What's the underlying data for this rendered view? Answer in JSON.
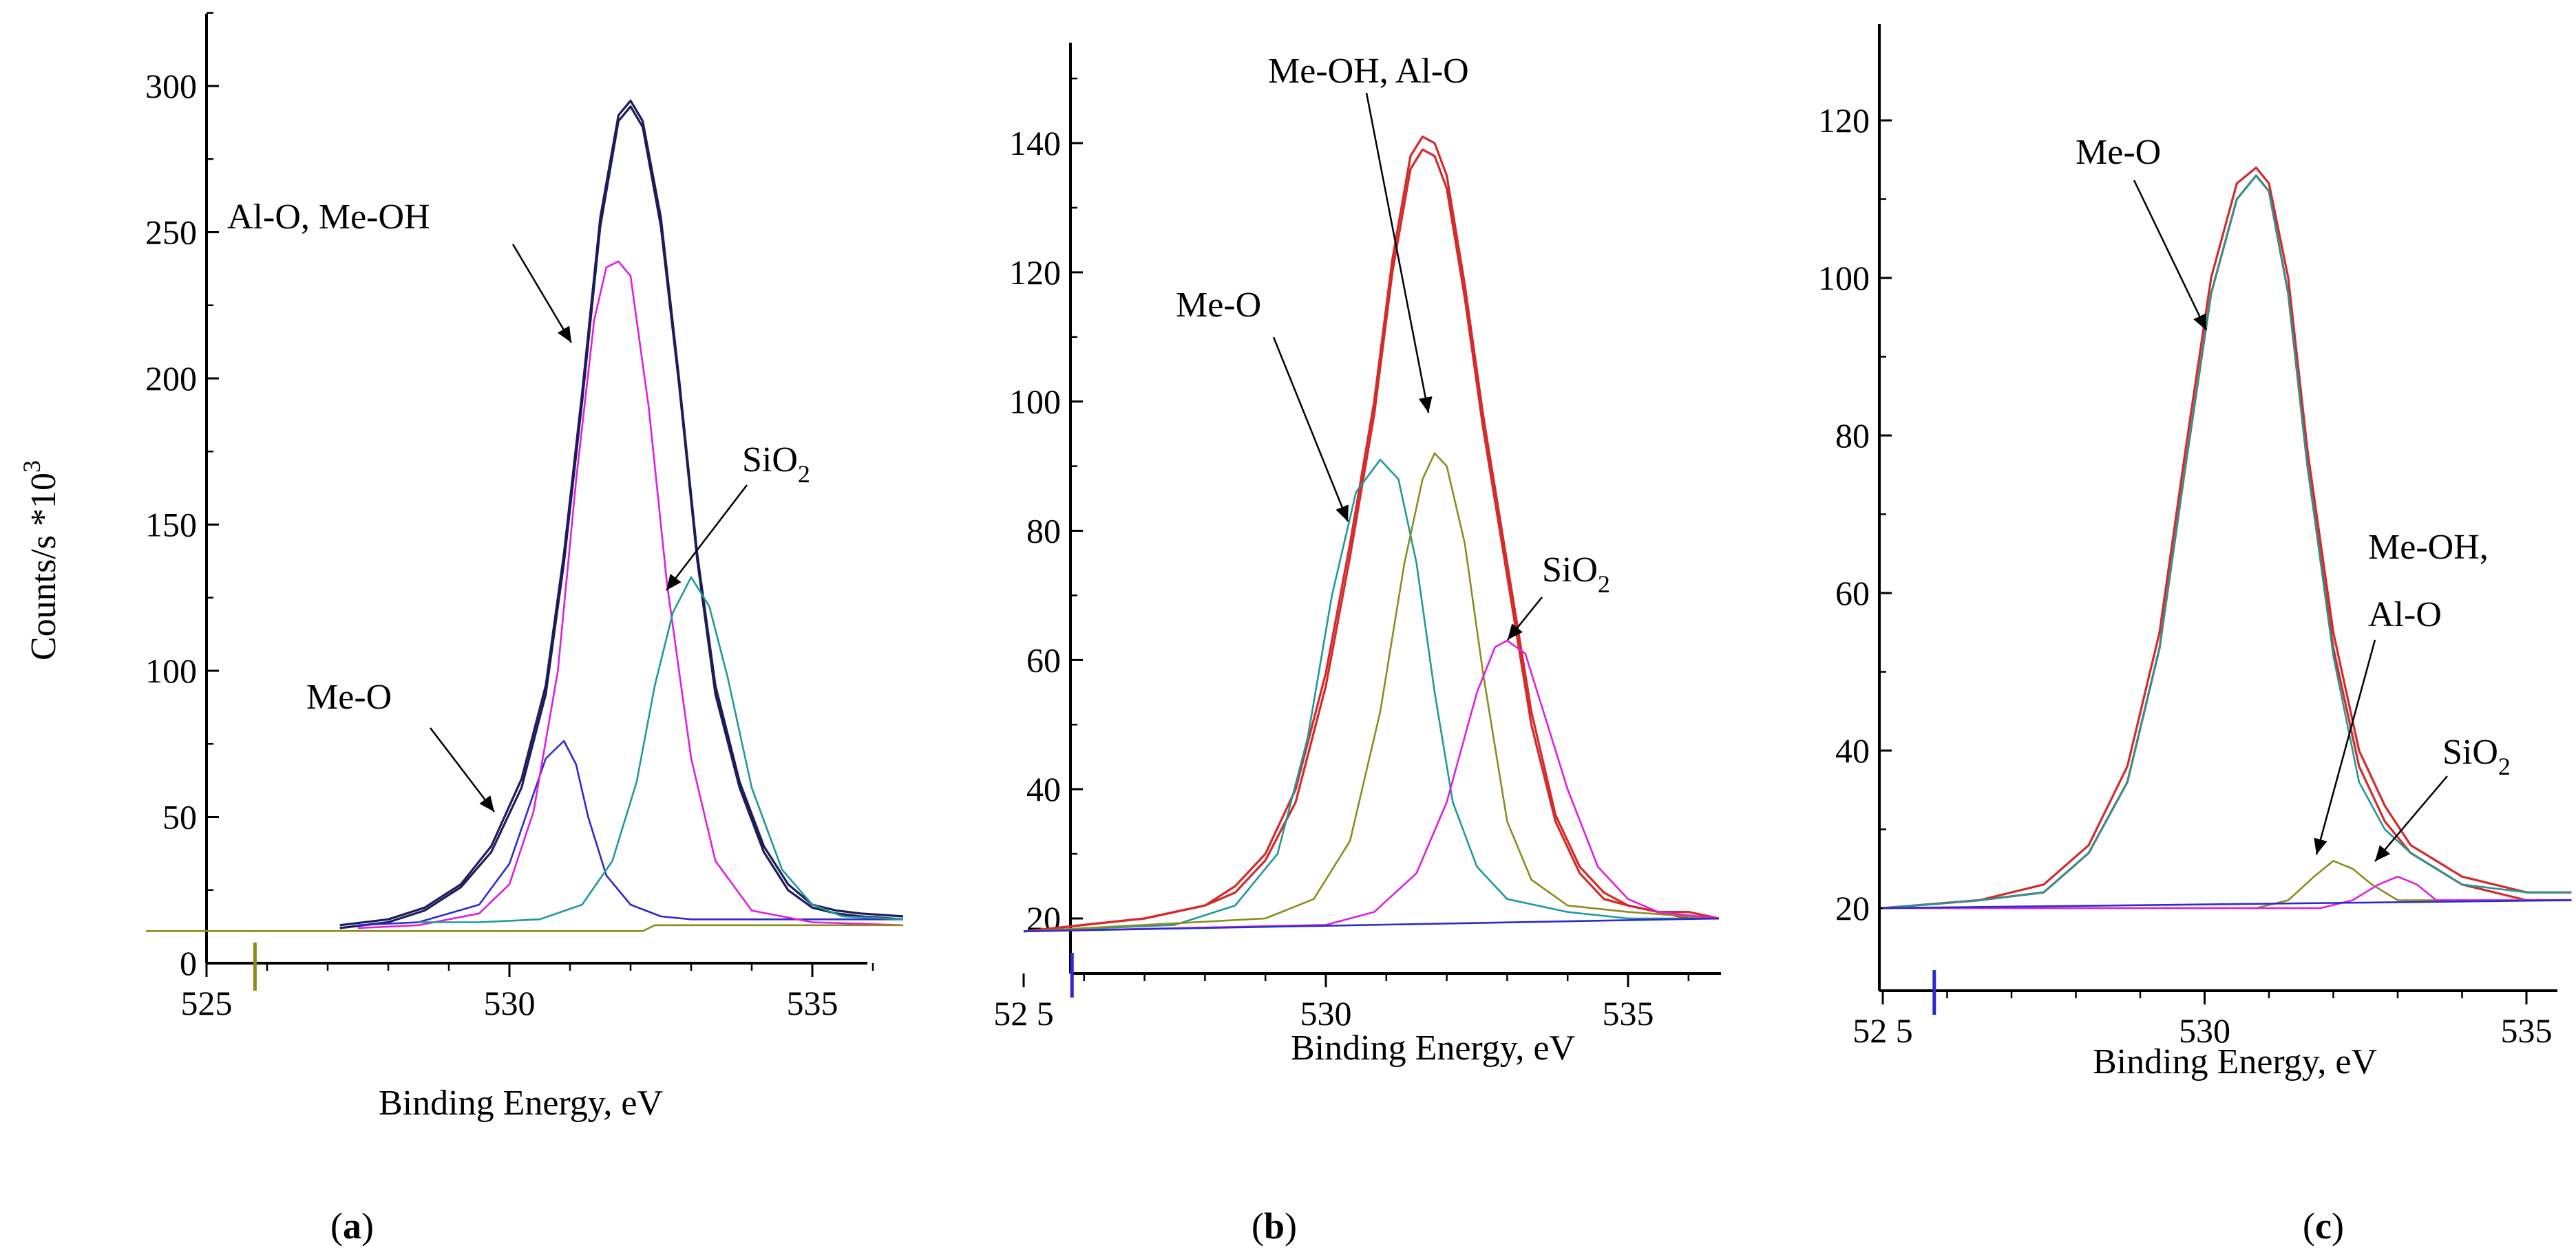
{
  "figure": {
    "y_axis_title": "Counts/s *10",
    "y_axis_title_sup": "3",
    "panel_labels": [
      {
        "open": "(",
        "letter": "a",
        "close": ")"
      },
      {
        "open": "(",
        "letter": "b",
        "close": ")"
      },
      {
        "open": "(",
        "letter": "c",
        "close": ")"
      }
    ]
  },
  "colors": {
    "axis": "#000000",
    "envelope_a": "#1c1c5a",
    "envelope_bc": "#d42a2a",
    "blue": "#2b2bd1",
    "magenta": "#e01ee0",
    "teal": "#1e9a9a",
    "olive": "#8c8c1e"
  },
  "chart_data": [
    {
      "type": "line",
      "panel": "a",
      "xlabel": "Binding Energy, eV",
      "ylabel": "Counts/s *10^3",
      "xlim": [
        525,
        536.5
      ],
      "ylim": [
        0,
        330
      ],
      "xticks": [
        525,
        530,
        535
      ],
      "yticks": [
        0,
        50,
        100,
        150,
        200,
        250,
        300
      ],
      "series": [
        {
          "key": "env1",
          "color": "envelope_a",
          "x": [
            527.2,
            528,
            528.6,
            529.2,
            529.7,
            530.2,
            530.6,
            530.9,
            531.2,
            531.5,
            531.8,
            532.0,
            532.2,
            532.5,
            532.8,
            533.1,
            533.4,
            533.8,
            534.2,
            534.6,
            535.0,
            535.4,
            535.8,
            536.5
          ],
          "y": [
            13,
            15,
            19,
            27,
            40,
            63,
            95,
            140,
            195,
            255,
            290,
            295,
            288,
            255,
            200,
            140,
            95,
            62,
            40,
            27,
            20,
            18,
            17,
            16
          ]
        },
        {
          "key": "env2",
          "color": "envelope_a",
          "x": [
            527.2,
            528,
            528.6,
            529.2,
            529.7,
            530.2,
            530.6,
            530.9,
            531.2,
            531.5,
            531.8,
            532.0,
            532.2,
            532.5,
            532.8,
            533.1,
            533.4,
            533.8,
            534.2,
            534.6,
            535.0,
            535.4,
            535.8,
            536.5
          ],
          "y": [
            12,
            14,
            18,
            26,
            38,
            60,
            92,
            137,
            192,
            252,
            288,
            293,
            286,
            252,
            198,
            138,
            92,
            60,
            38,
            25,
            19,
            17,
            16,
            15
          ]
        },
        {
          "key": "me_o",
          "color": "blue",
          "x": [
            527.5,
            528.5,
            529.5,
            530.0,
            530.3,
            530.6,
            530.9,
            531.1,
            531.3,
            531.6,
            532.0,
            532.5,
            533.0,
            534.0,
            535.0,
            536.5
          ],
          "y": [
            13,
            14,
            20,
            34,
            52,
            70,
            76,
            68,
            50,
            30,
            20,
            16,
            15,
            15,
            15,
            15
          ]
        },
        {
          "key": "al_o_me_oh",
          "color": "magenta",
          "x": [
            527.5,
            528.5,
            529.5,
            530.0,
            530.4,
            530.8,
            531.1,
            531.4,
            531.6,
            531.8,
            532.0,
            532.3,
            532.6,
            533.0,
            533.4,
            534.0,
            535.0,
            536.5
          ],
          "y": [
            12,
            13,
            17,
            27,
            52,
            100,
            165,
            220,
            238,
            240,
            235,
            190,
            130,
            70,
            35,
            18,
            14,
            13
          ]
        },
        {
          "key": "sio2",
          "color": "teal",
          "x": [
            528.5,
            529.5,
            530.5,
            531.2,
            531.7,
            532.1,
            532.4,
            532.7,
            533.0,
            533.3,
            533.6,
            534.0,
            534.5,
            535.0,
            535.5,
            536.5
          ],
          "y": [
            14,
            14,
            15,
            20,
            35,
            62,
            95,
            120,
            132,
            122,
            98,
            60,
            32,
            20,
            16,
            15
          ]
        },
        {
          "key": "baseline",
          "color": "olive",
          "x": [
            524,
            532.2,
            532.4,
            536.5
          ],
          "y": [
            11,
            11,
            13,
            13
          ]
        }
      ],
      "annotations": [
        {
          "text": "Al-O, Me-OH",
          "target_x": 531.4,
          "target_y": 215
        },
        {
          "text": "SiO",
          "sub": "2",
          "target_x": 532.8,
          "target_y": 136
        },
        {
          "text": "Me-O",
          "target_x": 530.7,
          "target_y": 55
        }
      ]
    },
    {
      "type": "line",
      "panel": "b",
      "xlabel": "Binding Energy, eV",
      "xlim": [
        525,
        536.5
      ],
      "ylim": [
        10,
        155
      ],
      "xticks": [
        525,
        530,
        535
      ],
      "xtick_labels": [
        "52 5",
        "530",
        "535"
      ],
      "yticks": [
        20,
        40,
        60,
        80,
        100,
        120,
        140
      ],
      "series": [
        {
          "key": "env1",
          "color": "envelope_bc",
          "x": [
            525,
            526,
            527,
            528,
            528.5,
            529,
            529.5,
            530,
            530.4,
            530.8,
            531.1,
            531.4,
            531.6,
            531.8,
            532.0,
            532.3,
            532.6,
            533.0,
            533.4,
            533.8,
            534.2,
            534.6,
            535,
            535.5,
            536,
            536.5
          ],
          "y": [
            18,
            19,
            20,
            22,
            25,
            30,
            40,
            58,
            78,
            100,
            122,
            138,
            141,
            140,
            135,
            118,
            98,
            75,
            52,
            36,
            28,
            24,
            22,
            21,
            21,
            20
          ]
        },
        {
          "key": "env2",
          "color": "envelope_bc",
          "x": [
            525,
            526,
            527,
            528,
            528.5,
            529,
            529.5,
            530,
            530.4,
            530.8,
            531.1,
            531.4,
            531.6,
            531.8,
            532.0,
            532.3,
            532.6,
            533.0,
            533.4,
            533.8,
            534.2,
            534.6,
            535,
            535.5,
            536,
            536.5
          ],
          "y": [
            18,
            19,
            20,
            22,
            24,
            29,
            38,
            56,
            76,
            98,
            120,
            136,
            139,
            138,
            133,
            116,
            96,
            73,
            50,
            35,
            27,
            23,
            22,
            21,
            20,
            20
          ]
        },
        {
          "key": "me_o",
          "color": "teal",
          "x": [
            525,
            527.5,
            528.5,
            529.2,
            529.7,
            530.1,
            530.5,
            530.9,
            531.2,
            531.5,
            531.8,
            532.1,
            532.5,
            533.0,
            534.0,
            535.0,
            536.5
          ],
          "y": [
            18,
            19,
            22,
            30,
            48,
            70,
            86,
            91,
            88,
            75,
            55,
            38,
            28,
            23,
            21,
            20,
            20
          ]
        },
        {
          "key": "me_oh_al_o",
          "color": "olive",
          "x": [
            525,
            529,
            529.8,
            530.4,
            530.9,
            531.3,
            531.6,
            531.8,
            532.0,
            532.3,
            532.6,
            533.0,
            533.4,
            534.0,
            535.0,
            536.5
          ],
          "y": [
            18,
            20,
            23,
            32,
            52,
            75,
            88,
            92,
            90,
            78,
            58,
            35,
            26,
            22,
            21,
            20
          ]
        },
        {
          "key": "sio2",
          "color": "magenta",
          "x": [
            525,
            530,
            530.8,
            531.5,
            532.0,
            532.5,
            532.8,
            533.0,
            533.3,
            533.6,
            534.0,
            534.5,
            535.0,
            535.5,
            536.5
          ],
          "y": [
            18,
            19,
            21,
            27,
            38,
            55,
            62,
            63,
            61,
            52,
            40,
            28,
            23,
            21,
            20
          ]
        },
        {
          "key": "baseline",
          "color": "blue",
          "x": [
            525,
            536.5
          ],
          "y": [
            18,
            20
          ]
        }
      ],
      "annotations": [
        {
          "text": "Me-OH, Al-O",
          "target_x": 531.9,
          "target_y": 90
        },
        {
          "text": "Me-O",
          "target_x": 530.6,
          "target_y": 80
        },
        {
          "text": "SiO",
          "sub": "2",
          "target_x": 533.1,
          "target_y": 63
        }
      ]
    },
    {
      "type": "line",
      "panel": "c",
      "xlabel": "Binding Energy, eV",
      "xlim": [
        525,
        535.7
      ],
      "ylim": [
        10,
        130
      ],
      "xticks": [
        525,
        530,
        535
      ],
      "xtick_labels": [
        "52 5",
        "530",
        "535"
      ],
      "yticks": [
        20,
        40,
        60,
        80,
        100,
        120
      ],
      "series": [
        {
          "key": "env1",
          "color": "envelope_bc",
          "x": [
            525,
            526.5,
            527.5,
            528.2,
            528.8,
            529.3,
            529.7,
            530.1,
            530.5,
            530.8,
            531.0,
            531.3,
            531.6,
            532.0,
            532.4,
            532.8,
            533.2,
            533.6,
            534,
            534.5,
            535,
            535.7
          ],
          "y": [
            20,
            21,
            23,
            28,
            38,
            55,
            78,
            100,
            112,
            114,
            112,
            100,
            78,
            55,
            40,
            33,
            28,
            26,
            24,
            23,
            22,
            22
          ]
        },
        {
          "key": "env2",
          "color": "envelope_bc",
          "x": [
            525,
            526.5,
            527.5,
            528.2,
            528.8,
            529.3,
            529.7,
            530.1,
            530.5,
            530.8,
            531.0,
            531.3,
            531.6,
            532.0,
            532.4,
            532.8,
            533.2,
            533.6,
            534,
            534.5,
            535,
            535.7
          ],
          "y": [
            20,
            21,
            22,
            27,
            36,
            53,
            76,
            98,
            110,
            113,
            111,
            98,
            76,
            53,
            38,
            31,
            27,
            25,
            23,
            22,
            21,
            21
          ]
        },
        {
          "key": "me_o",
          "color": "teal",
          "x": [
            525,
            526.5,
            527.5,
            528.2,
            528.8,
            529.3,
            529.7,
            530.1,
            530.5,
            530.8,
            531.0,
            531.3,
            531.6,
            532.0,
            532.4,
            532.8,
            533.2,
            533.6,
            534,
            535,
            535.7
          ],
          "y": [
            20,
            21,
            22,
            27,
            36,
            53,
            76,
            98,
            110,
            113,
            111,
            98,
            76,
            52,
            36,
            30,
            27,
            25,
            23,
            22,
            22
          ]
        },
        {
          "key": "me_oh_al_o",
          "color": "olive",
          "x": [
            525,
            530.8,
            531.3,
            531.7,
            532.0,
            532.3,
            532.6,
            533.0,
            533.5,
            535.7
          ],
          "y": [
            20,
            20,
            21,
            24,
            26,
            25,
            23,
            21,
            21,
            21
          ]
        },
        {
          "key": "sio2",
          "color": "magenta",
          "x": [
            525,
            531.8,
            532.3,
            532.7,
            533.0,
            533.3,
            533.6,
            534.0,
            535.7
          ],
          "y": [
            20,
            20,
            21,
            23,
            24,
            23,
            21,
            21,
            21
          ]
        },
        {
          "key": "baseline",
          "color": "blue",
          "x": [
            525,
            535.7
          ],
          "y": [
            20,
            21
          ]
        }
      ],
      "annotations": [
        {
          "text": "Me-O",
          "target_x": 530.0,
          "target_y": 92
        },
        {
          "text": "Me-OH,",
          "text2": "Al-O",
          "target_x": 531.9,
          "target_y": 26
        },
        {
          "text": "SiO",
          "sub": "2",
          "target_x": 532.8,
          "target_y": 23
        }
      ]
    }
  ]
}
